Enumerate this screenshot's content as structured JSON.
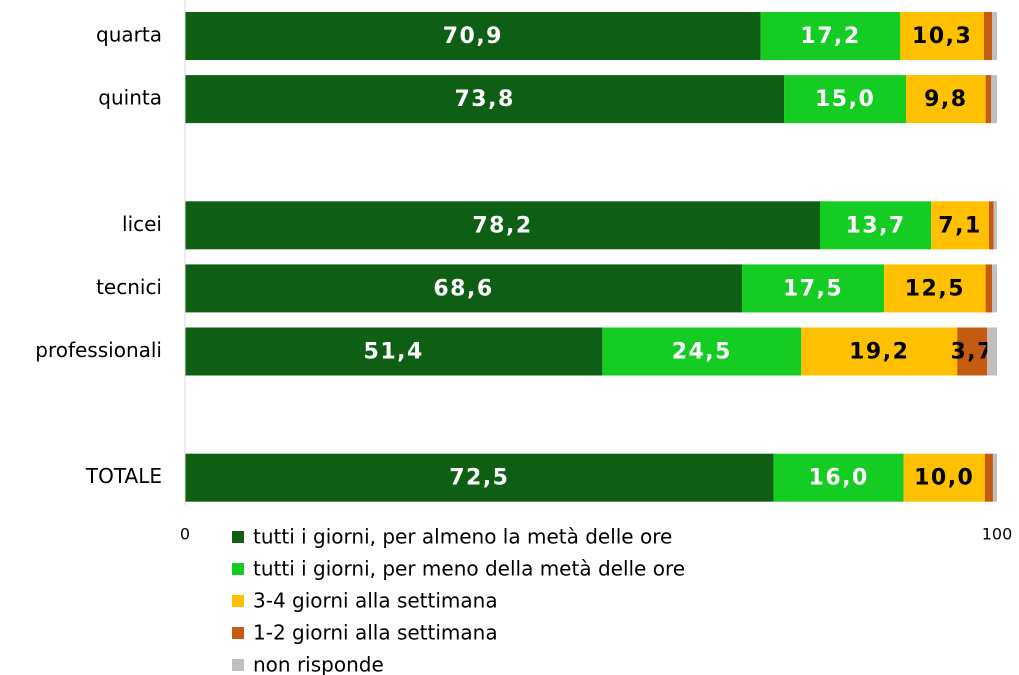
{
  "chart_data": {
    "type": "stacked-barh",
    "categories": [
      "quarta",
      "quinta",
      null,
      "licei",
      "tecnici",
      "professionali",
      null,
      "TOTALE"
    ],
    "series": [
      {
        "name": "tutti i giorni, per almeno la metà delle ore",
        "color": "#0e5f14",
        "values": [
          70.9,
          73.8,
          null,
          78.2,
          68.6,
          51.4,
          null,
          72.5
        ],
        "value_labels": [
          "70,9",
          "73,8",
          null,
          "78,2",
          "68,6",
          "51,4",
          null,
          "72,5"
        ]
      },
      {
        "name": "tutti i giorni, per meno della metà delle ore",
        "color": "#14cc22",
        "values": [
          17.2,
          15.0,
          null,
          13.7,
          17.5,
          24.5,
          null,
          16.0
        ],
        "value_labels": [
          "17,2",
          "15,0",
          null,
          "13,7",
          "17,5",
          "24,5",
          null,
          "16,0"
        ]
      },
      {
        "name": "3-4 giorni alla settimana",
        "color": "#ffc000",
        "values": [
          10.3,
          9.8,
          null,
          7.1,
          12.5,
          19.2,
          null,
          10.0
        ],
        "value_labels": [
          "10,3",
          "9,8",
          null,
          "7,1",
          "12,5",
          "19,2",
          null,
          "10,0"
        ]
      },
      {
        "name": "1-2 giorni alla settimana",
        "color": "#c55a11",
        "values": [
          1.0,
          0.7,
          null,
          0.6,
          0.8,
          3.7,
          null,
          1.0
        ],
        "value_labels": [
          null,
          null,
          null,
          null,
          null,
          "3,7",
          null,
          null
        ]
      },
      {
        "name": "non risponde",
        "color": "#bfbfbf",
        "values": [
          0.6,
          0.7,
          null,
          0.4,
          0.6,
          1.2,
          null,
          0.5
        ]
      }
    ],
    "xlim": [
      0,
      100
    ],
    "xticks": [
      0,
      100
    ]
  }
}
